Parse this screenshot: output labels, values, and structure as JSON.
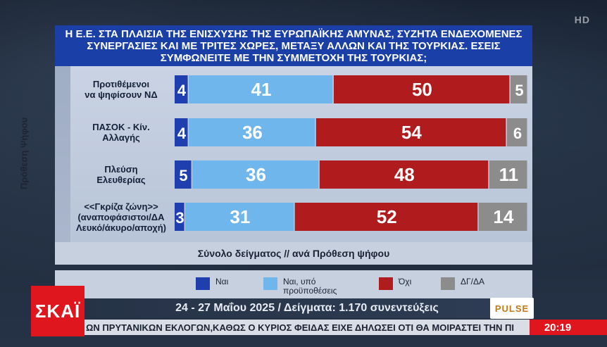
{
  "header": {
    "hd_badge": "HD",
    "title": "Η Ε.Ε. ΣΤΑ ΠΛΑΙΣΙΑ ΤΗΣ ΕΝΙΣΧΥΣΗΣ ΤΗΣ ΕΥΡΩΠΑΪΚΗΣ ΑΜΥΝΑΣ, ΣΥΖΗΤΑ ΕΝΔΕΧΟΜΕΝΕΣ ΣΥΝΕΡΓΑΣΙΕΣ ΚΑΙ ΜΕ ΤΡΙΤΕΣ ΧΩΡΕΣ, ΜΕΤΑΞΥ ΑΛΛΩΝ ΚΑΙ ΤΗΣ ΤΟΥΡΚΙΑΣ. ΕΣΕΙΣ ΣΥΜΦΩΝΕΙΤΕ ΜΕ ΤΗΝ ΣΥΜΜΕΤΟΧΗ ΤΗΣ ΤΟΥΡΚΙΑΣ;"
  },
  "chart_data": {
    "type": "bar",
    "orientation": "horizontal",
    "stacked": true,
    "ylabel": "Πρόθεση Ψήφου",
    "xlabel": "Σύνολο δείγματος // ανά Πρόθεση ψήφου",
    "categories": [
      "Προτιθέμενοι να ψηφίσουν ΝΔ",
      "ΠΑΣΟΚ - Κίν. Αλλαγής",
      "Πλεύση Ελευθερίας",
      "<<Γκρίζα ζώνη>> (αναποφάσιστοι/ΔΑ Λευκό/άκυρο/αποχή)"
    ],
    "category_lines": [
      [
        "Προτιθέμενοι",
        "να ψηφίσουν ΝΔ"
      ],
      [
        "ΠΑΣΟΚ - Κίν.",
        "Αλλαγής"
      ],
      [
        "Πλεύση",
        "Ελευθερίας"
      ],
      [
        "<<Γκρίζα ζώνη>>",
        "(αναποφάσιστοι/ΔΑ",
        "Λευκό/άκυρο/αποχή)"
      ]
    ],
    "series": [
      {
        "name": "Ναι",
        "values": [
          4,
          4,
          5,
          3
        ]
      },
      {
        "name": "Ναι, υπό προϋποθέσεις",
        "values": [
          41,
          36,
          36,
          31
        ]
      },
      {
        "name": "Όχι",
        "values": [
          50,
          54,
          48,
          52
        ]
      },
      {
        "name": "ΔΓ/ΔΑ",
        "values": [
          5,
          6,
          11,
          14
        ]
      }
    ],
    "legend_position": "bottom",
    "grid": false,
    "colors": [
      "#1f3fae",
      "#6fb6ec",
      "#b01c1e",
      "#8c8c8c"
    ]
  },
  "legend": {
    "items": [
      "Ναι",
      "Ναι, υπό προϋποθέσεις",
      "Όχι",
      "ΔΓ/ΔΑ"
    ]
  },
  "footer": {
    "channel_logo": "ΣΚΑΪ",
    "date_line": "24 - 27 Μαΐου 2025 / Δείγματα: 1.170 συνεντεύξεις",
    "pollster_logo": "PULSE",
    "ticker": "ΩΝ ΠΡΥΤΑΝΙΚΩΝ ΕΚΛΟΓΩΝ,ΚΑΘΩΣ Ο ΚΥΡΙΟΣ ΦΕΙΔΑΣ ΕΙΧΕ ΔΗΛΩΣΕΙ ΟΤΙ ΘΑ ΜΟΙΡΑΣΤΕΙ ΤΗΝ ΠΙ",
    "clock": "20:19"
  }
}
